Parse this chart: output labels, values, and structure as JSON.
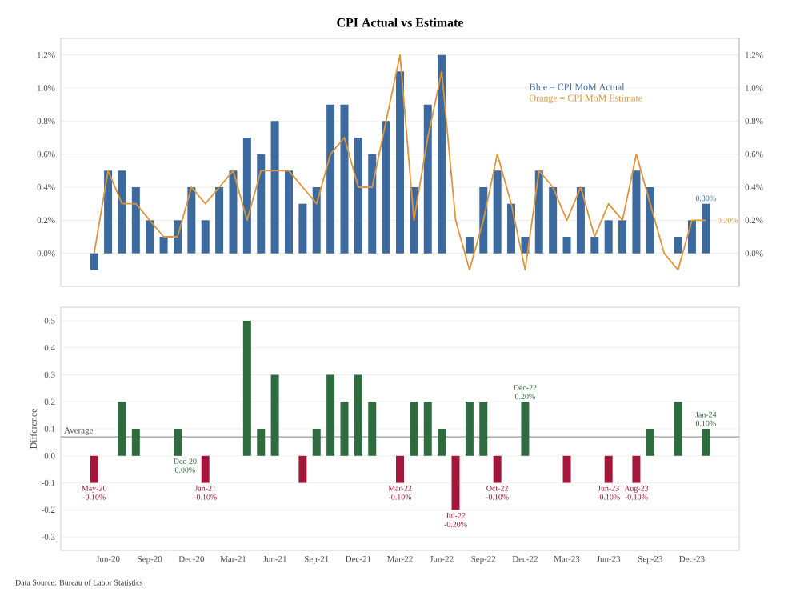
{
  "chart_data": [
    {
      "type": "bar",
      "title": "CPI Actual vs Estimate",
      "categories": [
        null,
        null,
        null,
        null,
        null,
        null,
        null,
        null,
        null,
        null,
        null,
        null,
        null,
        null,
        null,
        null,
        null,
        null,
        null,
        null,
        null,
        null,
        null,
        null,
        null,
        null,
        null,
        null,
        null,
        null,
        null,
        null,
        null,
        null,
        null,
        null,
        null,
        null,
        null,
        null,
        null,
        null,
        null,
        null,
        null
      ],
      "series": [
        {
          "name": "Blue = CPI MoM Actual",
          "color": "#3d6a9e",
          "values": [
            -0.1,
            0.5,
            0.5,
            0.4,
            0.2,
            0.1,
            0.2,
            0.4,
            0.2,
            0.4,
            0.5,
            0.7,
            0.6,
            0.8,
            0.5,
            0.3,
            0.4,
            0.9,
            0.9,
            0.7,
            0.6,
            0.8,
            1.1,
            0.4,
            0.9,
            1.2,
            0.0,
            0.1,
            0.4,
            0.5,
            0.3,
            0.1,
            0.5,
            0.4,
            0.1,
            0.4,
            0.1,
            0.2,
            0.2,
            0.5,
            0.4,
            0.0,
            0.1,
            0.2,
            0.3
          ],
          "value_labels": [
            null,
            null,
            null,
            null,
            null,
            null,
            null,
            null,
            null,
            null,
            null,
            null,
            null,
            null,
            null,
            null,
            null,
            null,
            null,
            null,
            null,
            null,
            null,
            null,
            null,
            null,
            null,
            null,
            null,
            null,
            null,
            null,
            null,
            null,
            null,
            null,
            null,
            null,
            null,
            null,
            null,
            null,
            null,
            null,
            "0.30%"
          ]
        },
        {
          "type": "line",
          "name": "Orange = CPI MoM Estimate",
          "color": "#e0943a",
          "values": [
            0.0,
            0.5,
            0.3,
            0.3,
            0.2,
            0.1,
            0.1,
            0.4,
            0.3,
            0.4,
            0.5,
            0.2,
            0.5,
            0.5,
            0.5,
            0.4,
            0.3,
            0.6,
            0.7,
            0.4,
            0.4,
            0.8,
            1.2,
            0.2,
            0.7,
            1.1,
            0.2,
            -0.1,
            0.2,
            0.6,
            0.3,
            -0.1,
            0.5,
            0.4,
            0.2,
            0.4,
            0.1,
            0.3,
            0.2,
            0.6,
            0.3,
            0.0,
            -0.1,
            0.2,
            0.2
          ],
          "value_labels": [
            null,
            null,
            null,
            null,
            null,
            null,
            null,
            null,
            null,
            null,
            null,
            null,
            null,
            null,
            null,
            null,
            null,
            null,
            null,
            null,
            null,
            null,
            null,
            null,
            null,
            null,
            null,
            null,
            null,
            null,
            null,
            null,
            null,
            null,
            null,
            null,
            null,
            null,
            null,
            null,
            null,
            null,
            null,
            null,
            "0.20%"
          ]
        }
      ],
      "ylim": [
        -0.2,
        1.3
      ],
      "yticks": [
        {
          "value": 0.0,
          "label": "0.0%"
        },
        {
          "value": 0.2,
          "label": "0.2%"
        },
        {
          "value": 0.4,
          "label": "0.4%"
        },
        {
          "value": 0.6,
          "label": "0.6%"
        },
        {
          "value": 0.8,
          "label": "0.8%"
        },
        {
          "value": 1.0,
          "label": "1.0%"
        },
        {
          "value": 1.2,
          "label": "1.2%"
        }
      ],
      "y2lim": [
        -0.2,
        1.3
      ],
      "y2ticks": [
        {
          "value": 0.0,
          "label": "0.0%"
        },
        {
          "value": 0.2,
          "label": "0.2%"
        },
        {
          "value": 0.4,
          "label": "0.4%"
        },
        {
          "value": 0.6,
          "label": "0.6%"
        },
        {
          "value": 0.8,
          "label": "0.8%"
        },
        {
          "value": 1.0,
          "label": "1.0%"
        },
        {
          "value": 1.2,
          "label": "1.2%"
        }
      ],
      "grid": "y",
      "legend": "top right",
      "tick_labels": "y"
    },
    {
      "type": "bar",
      "ylabel": "Difference",
      "categories": [
        null,
        "Jun-20",
        null,
        null,
        "Sep-20",
        null,
        null,
        "Dec-20",
        null,
        null,
        "Mar-21",
        null,
        null,
        "Jun-21",
        null,
        null,
        "Sep-21",
        null,
        null,
        "Dec-21",
        null,
        null,
        "Mar-22",
        null,
        null,
        "Jun-22",
        null,
        null,
        "Sep-22",
        null,
        null,
        "Dec-22",
        null,
        null,
        "Mar-23",
        null,
        null,
        "Jun-23",
        null,
        null,
        "Sep-23",
        null,
        null,
        "Dec-23",
        null
      ],
      "values": [
        -0.1,
        0,
        0.2,
        0.1,
        0,
        0,
        0.1,
        0,
        -0.1,
        0,
        0,
        0.5,
        0.1,
        0.3,
        0,
        -0.1,
        0.1,
        0.3,
        0.2,
        0.3,
        0.2,
        0,
        -0.1,
        0.2,
        0.2,
        0.1,
        -0.2,
        0.2,
        0.2,
        -0.1,
        0,
        0.2,
        0,
        0,
        -0.1,
        0,
        0,
        -0.1,
        0,
        -0.1,
        0.1,
        0,
        0.2,
        0,
        0.1
      ],
      "colors": [
        "#a3183a",
        "#2e6b3f",
        "#2e6b3f",
        "#2e6b3f",
        "#2e6b3f",
        "#2e6b3f",
        "#2e6b3f",
        "#2e6b3f",
        "#a3183a",
        "#2e6b3f",
        "#2e6b3f",
        "#2e6b3f",
        "#2e6b3f",
        "#2e6b3f",
        "#2e6b3f",
        "#a3183a",
        "#2e6b3f",
        "#2e6b3f",
        "#2e6b3f",
        "#2e6b3f",
        "#2e6b3f",
        "#2e6b3f",
        "#a3183a",
        "#2e6b3f",
        "#2e6b3f",
        "#2e6b3f",
        "#a3183a",
        "#2e6b3f",
        "#2e6b3f",
        "#a3183a",
        "#2e6b3f",
        "#2e6b3f",
        "#2e6b3f",
        "#2e6b3f",
        "#a3183a",
        "#2e6b3f",
        "#2e6b3f",
        "#a3183a",
        "#2e6b3f",
        "#a3183a",
        "#2e6b3f",
        "#2e6b3f",
        "#2e6b3f",
        "#2e6b3f",
        "#2e6b3f"
      ],
      "value_labels": [
        "May-20 -0.10%",
        null,
        null,
        null,
        null,
        null,
        null,
        "Dec-20 0.00%",
        "Jan-21 -0.10%",
        null,
        null,
        null,
        null,
        null,
        null,
        null,
        null,
        null,
        null,
        null,
        null,
        null,
        "Mar-22 -0.10%",
        null,
        null,
        null,
        "Jul-22 -0.20%",
        null,
        null,
        "Oct-22 -0.10%",
        null,
        "Dec-22 0.20%",
        null,
        null,
        null,
        null,
        null,
        "Jun-23 -0.10%",
        null,
        "Aug-23 -0.10%",
        null,
        null,
        null,
        null,
        "Jan-24 0.10%"
      ],
      "ylim": [
        -0.35,
        0.55
      ],
      "yticks": [
        {
          "value": -0.3,
          "label": "-0.3"
        },
        {
          "value": -0.2,
          "label": "-0.2"
        },
        {
          "value": -0.1,
          "label": "-0.1"
        },
        {
          "value": 0,
          "label": "0.0"
        },
        {
          "value": 0.1,
          "label": "0.1"
        },
        {
          "value": 0.2,
          "label": "0.2"
        },
        {
          "value": 0.3,
          "label": "0.3"
        },
        {
          "value": 0.4,
          "label": "0.4"
        },
        {
          "value": 0.5,
          "label": "0.5"
        }
      ],
      "ref_lines": [
        {
          "axis": "y",
          "value": 0.07,
          "label": "Average",
          "color": "#999999"
        }
      ],
      "grid": "y",
      "annotations": [
        "Data Source: Bureau of Labor Statistics"
      ]
    }
  ]
}
